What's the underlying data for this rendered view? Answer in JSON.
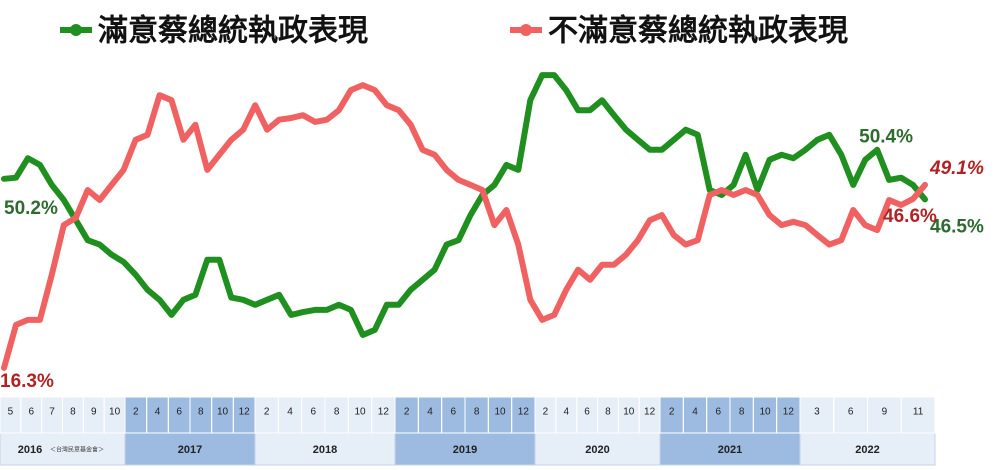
{
  "chart_data": {
    "type": "line",
    "series": [
      {
        "name": "滿意蔡總統執政表現",
        "color": "#1f8f1f",
        "label_color": "#2e6b2e",
        "values": [
          50.2,
          50.4,
          53.9,
          52.7,
          49.1,
          46.4,
          42.8,
          39.2,
          38.4,
          36.6,
          35.3,
          33.0,
          30.3,
          28.5,
          25.8,
          28.5,
          29.4,
          35.7,
          35.7,
          28.9,
          28.5,
          27.6,
          28.5,
          29.4,
          25.8,
          26.3,
          26.7,
          26.7,
          27.6,
          26.7,
          22.2,
          23.1,
          27.6,
          27.6,
          30.3,
          32.1,
          33.9,
          38.4,
          39.2,
          43.7,
          47.3,
          49.1,
          52.7,
          51.8,
          64.3,
          68.8,
          68.8,
          66.1,
          62.5,
          62.5,
          64.3,
          61.6,
          59.0,
          57.2,
          55.4,
          55.4,
          57.2,
          59.0,
          58.1,
          48.2,
          47.3,
          49.1,
          54.5,
          48.2,
          53.6,
          54.5,
          53.9,
          55.4,
          57.2,
          58.1,
          54.5,
          49.1,
          53.6,
          55.4,
          50.0,
          50.4,
          49.1,
          46.5
        ],
        "value_labels": {
          "0": "50.2%",
          "75": "50.4%",
          "77": "46.5%"
        }
      },
      {
        "name": "不滿意蔡總統執政表現",
        "color": "#f06262",
        "label_color": "#b22222",
        "values": [
          16.3,
          24.0,
          24.9,
          24.9,
          33.0,
          41.9,
          43.2,
          48.2,
          46.4,
          49.1,
          51.8,
          57.2,
          58.1,
          65.2,
          64.3,
          57.2,
          59.9,
          51.8,
          54.5,
          57.2,
          59.0,
          63.4,
          59.0,
          60.8,
          61.1,
          61.6,
          60.4,
          60.8,
          62.5,
          66.1,
          67.0,
          66.1,
          63.4,
          62.5,
          59.9,
          55.4,
          54.5,
          51.8,
          50.0,
          49.1,
          48.2,
          41.9,
          44.6,
          38.4,
          28.5,
          24.9,
          25.8,
          30.3,
          33.9,
          32.1,
          34.8,
          34.8,
          36.6,
          39.2,
          42.8,
          43.7,
          40.1,
          38.4,
          39.2,
          47.3,
          48.2,
          47.3,
          48.2,
          47.3,
          43.7,
          41.9,
          42.5,
          41.9,
          40.1,
          38.4,
          39.2,
          44.6,
          41.9,
          41.0,
          46.4,
          45.5,
          46.6,
          49.1
        ],
        "value_labels": {
          "0": "16.3%",
          "76": "46.6%",
          "77": "49.1%"
        }
      }
    ],
    "ylim": [
      10,
      75
    ],
    "source": "＜台灣民意基金會＞",
    "years": [
      {
        "label": "2016",
        "months": [
          "5",
          "6",
          "7",
          "8",
          "9",
          "10"
        ]
      },
      {
        "label": "2017",
        "months": [
          "2",
          "4",
          "6",
          "8",
          "10",
          "12"
        ]
      },
      {
        "label": "2018",
        "months": [
          "2",
          "4",
          "6",
          "8",
          "10",
          "12"
        ]
      },
      {
        "label": "2019",
        "months": [
          "2",
          "4",
          "6",
          "8",
          "10",
          "12"
        ]
      },
      {
        "label": "2020",
        "months": [
          "2",
          "4",
          "6",
          "8",
          "10",
          "12"
        ]
      },
      {
        "label": "2021",
        "months": [
          "2",
          "4",
          "6",
          "8",
          "10",
          "12"
        ]
      },
      {
        "label": "2022",
        "months": [
          "3",
          "6",
          "9",
          "11"
        ]
      }
    ]
  }
}
